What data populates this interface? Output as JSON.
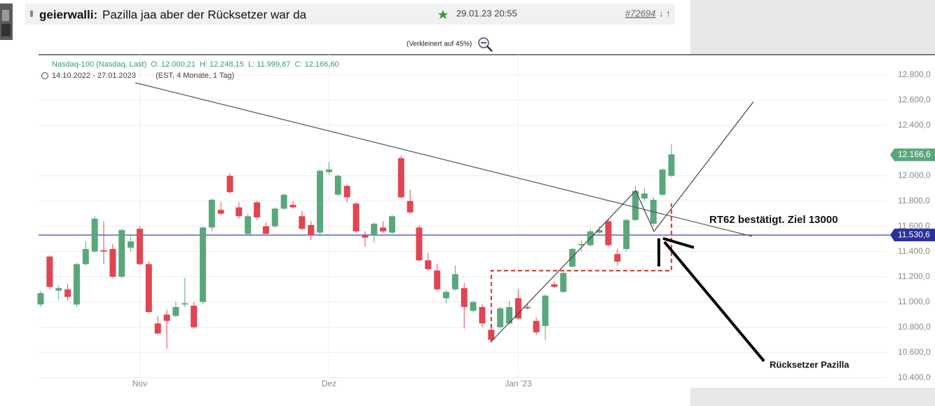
{
  "post": {
    "author": "geierwalli:",
    "text": "Pazilla jaa aber der Rücksetzer war da",
    "date": "29.01.23 20:55",
    "id": "#72694",
    "nav": "↓ ↑",
    "caption": "(Verkleinert auf 45%)"
  },
  "chart_data": {
    "type": "candlestick",
    "header": "Nasdaq-100 (Nasdaq, Last)  O: 12.000,21  H: 12.248,15  L: 11.999,87  C: 12.166,60",
    "range": "14.10.2022 - 27.01.2023",
    "range_note": "(EST, 4 Monate, 1 Tag)",
    "up_color": "#5aa77c",
    "down_color": "#e04552",
    "values": [
      [
        10980,
        11090,
        10960,
        11070
      ],
      [
        11360,
        11370,
        11100,
        11120
      ],
      [
        11090,
        11130,
        11020,
        11110
      ],
      [
        11100,
        11140,
        11010,
        11040
      ],
      [
        10980,
        11310,
        10960,
        11300
      ],
      [
        11300,
        11480,
        11290,
        11420
      ],
      [
        11400,
        11680,
        11390,
        11660
      ],
      [
        11410,
        11640,
        11300,
        11400
      ],
      [
        11420,
        11460,
        11190,
        11200
      ],
      [
        11200,
        11580,
        11190,
        11570
      ],
      [
        11430,
        11520,
        11400,
        11480
      ],
      [
        11580,
        11600,
        11290,
        11300
      ],
      [
        11300,
        11320,
        10910,
        10920
      ],
      [
        10830,
        10890,
        10740,
        10750
      ],
      [
        10900,
        10940,
        10630,
        10850
      ],
      [
        10890,
        11000,
        10880,
        10960
      ],
      [
        10980,
        11190,
        10960,
        10990
      ],
      [
        10970,
        11000,
        10790,
        10800
      ],
      [
        11000,
        11600,
        10980,
        11590
      ],
      [
        11590,
        11820,
        11560,
        11810
      ],
      [
        11730,
        11790,
        11690,
        11700
      ],
      [
        12000,
        12020,
        11860,
        11870
      ],
      [
        11750,
        11790,
        11660,
        11680
      ],
      [
        11540,
        11700,
        11530,
        11680
      ],
      [
        11790,
        11800,
        11650,
        11670
      ],
      [
        11600,
        11630,
        11530,
        11540
      ],
      [
        11600,
        11750,
        11590,
        11740
      ],
      [
        11740,
        11860,
        11730,
        11850
      ],
      [
        11770,
        11800,
        11740,
        11750
      ],
      [
        11680,
        11720,
        11570,
        11580
      ],
      [
        11610,
        11640,
        11490,
        11530
      ],
      [
        11550,
        12050,
        11520,
        12040
      ],
      [
        12030,
        12110,
        12010,
        12050
      ],
      [
        11850,
        12010,
        11840,
        12000
      ],
      [
        11920,
        11930,
        11790,
        11830
      ],
      [
        11780,
        11790,
        11550,
        11560
      ],
      [
        11530,
        11560,
        11440,
        11510
      ],
      [
        11530,
        11630,
        11470,
        11620
      ],
      [
        11590,
        11640,
        11550,
        11560
      ],
      [
        11550,
        11690,
        11540,
        11680
      ],
      [
        12140,
        12160,
        11820,
        11830
      ],
      [
        11800,
        11890,
        11700,
        11710
      ],
      [
        11590,
        11610,
        11320,
        11330
      ],
      [
        11330,
        11390,
        11250,
        11260
      ],
      [
        11250,
        11300,
        11090,
        11100
      ],
      [
        11030,
        11090,
        10990,
        11080
      ],
      [
        11100,
        11290,
        11090,
        11220
      ],
      [
        11110,
        11150,
        10790,
        10960
      ],
      [
        10930,
        11010,
        10920,
        11000
      ],
      [
        10960,
        10980,
        10800,
        10830
      ],
      [
        10780,
        10830,
        10690,
        10700
      ],
      [
        10800,
        10960,
        10790,
        10950
      ],
      [
        10830,
        11010,
        10820,
        10960
      ],
      [
        11030,
        11100,
        10860,
        10870
      ],
      [
        10960,
        10990,
        10940,
        10950
      ],
      [
        10850,
        10880,
        10740,
        10760
      ],
      [
        10810,
        11060,
        10700,
        11050
      ],
      [
        11140,
        11160,
        11110,
        11120
      ],
      [
        11080,
        11240,
        11070,
        11230
      ],
      [
        11280,
        11430,
        11270,
        11420
      ],
      [
        11450,
        11490,
        11400,
        11460
      ],
      [
        11450,
        11580,
        11440,
        11560
      ],
      [
        11550,
        11600,
        11540,
        11570
      ],
      [
        11640,
        11660,
        11440,
        11450
      ],
      [
        11380,
        11420,
        11290,
        11320
      ],
      [
        11420,
        11660,
        11400,
        11650
      ],
      [
        11650,
        11920,
        11640,
        11880
      ],
      [
        11820,
        11900,
        11800,
        11860
      ],
      [
        11620,
        11830,
        11600,
        11810
      ],
      [
        11850,
        12060,
        11840,
        12050
      ],
      [
        12000,
        12250,
        11990,
        12170
      ]
    ],
    "xticks": [
      {
        "value": 11,
        "label": "Nov"
      },
      {
        "value": 32,
        "label": "Dez"
      },
      {
        "value": 53,
        "label": "Jan '23"
      }
    ],
    "ylim": [
      10320,
      12960
    ],
    "yticks": [
      {
        "value": 12800,
        "label": "12.800,0"
      },
      {
        "value": 12600,
        "label": "12.600,0"
      },
      {
        "value": 12400,
        "label": "12.400,0"
      },
      {
        "value": 12000,
        "label": "12.000,0"
      },
      {
        "value": 11800,
        "label": "11.800,0"
      },
      {
        "value": 11600,
        "label": "11.600,0"
      },
      {
        "value": 11400,
        "label": "11.400,0"
      },
      {
        "value": 11200,
        "label": "11.200,0"
      },
      {
        "value": 11000,
        "label": "11.000,0"
      },
      {
        "value": 10800,
        "label": "10.800,0"
      },
      {
        "value": 10600,
        "label": "10.600,0"
      },
      {
        "value": 10400,
        "label": "10.400,0"
      }
    ],
    "last_price": {
      "value": 12166.6,
      "label": "12.166,6"
    },
    "level": {
      "value": 11530.6,
      "label": "11.530,6"
    },
    "annotations": [
      "RT62 bestätigt. Ziel 13000",
      "Rücksetzer Pazilla"
    ]
  }
}
